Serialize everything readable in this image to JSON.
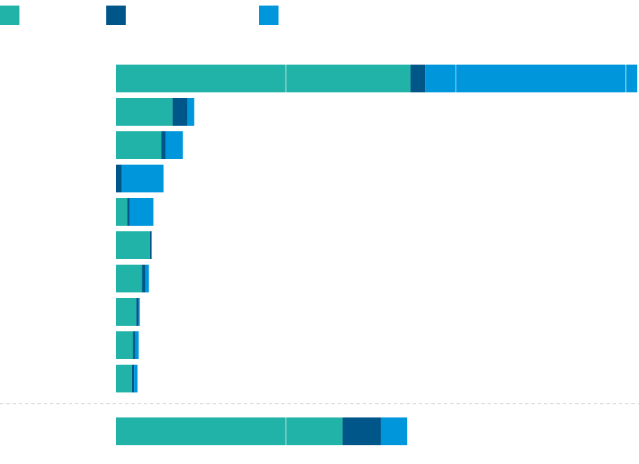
{
  "chart_data": {
    "type": "bar",
    "orientation": "horizontal",
    "stacked": true,
    "colors": [
      "#22b3a8",
      "#005689",
      "#0096dc"
    ],
    "legend_placement": "top-left",
    "grid": true,
    "xlim": [
      0,
      4.5
    ],
    "x_gridlines": [
      1.5,
      3.0,
      4.5
    ],
    "categories": [
      "",
      "",
      "",
      "",
      "",
      "",
      "",
      "",
      "",
      "",
      ""
    ],
    "group_separator_after_index": 9,
    "series": [
      {
        "values": [
          2.6,
          0.5,
          0.4,
          0.0,
          0.1,
          0.3,
          0.23,
          0.18,
          0.15,
          0.14,
          2.0
        ]
      },
      {
        "values": [
          0.13,
          0.13,
          0.04,
          0.05,
          0.02,
          0.015,
          0.03,
          0.02,
          0.02,
          0.02,
          0.34
        ]
      },
      {
        "values": [
          1.87,
          0.06,
          0.15,
          0.37,
          0.21,
          0.0,
          0.03,
          0.01,
          0.03,
          0.03,
          0.23
        ]
      }
    ]
  }
}
